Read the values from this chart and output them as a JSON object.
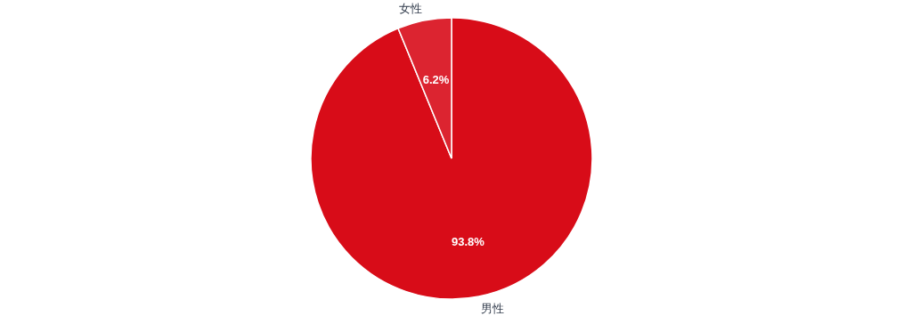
{
  "chart_data": {
    "type": "pie",
    "categories": [
      "男性",
      "女性"
    ],
    "values": [
      93.8,
      6.2
    ],
    "colors": [
      "#d80c18",
      "#dc2430"
    ],
    "value_labels": [
      "93.8%",
      "6.2%"
    ]
  }
}
